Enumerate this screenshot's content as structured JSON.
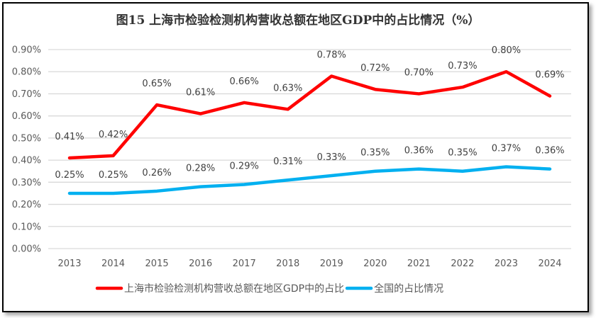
{
  "chart_data": {
    "type": "line",
    "title": "图15 上海市检验检测机构营收总额在地区GDP中的占比情况（%）",
    "xlabel": "",
    "ylabel": "",
    "categories": [
      "2013",
      "2014",
      "2015",
      "2016",
      "2017",
      "2018",
      "2019",
      "2020",
      "2021",
      "2022",
      "2023",
      "2024"
    ],
    "ylim": [
      0,
      0.9
    ],
    "yticks": [
      "0.00%",
      "0.10%",
      "0.20%",
      "0.30%",
      "0.40%",
      "0.50%",
      "0.60%",
      "0.70%",
      "0.80%",
      "0.90%"
    ],
    "grid": true,
    "legend_position": "bottom",
    "series": [
      {
        "name": "上海市检验检测机构营收总额在地区GDP中的占比",
        "color": "#ff0000",
        "values": [
          0.41,
          0.42,
          0.65,
          0.61,
          0.66,
          0.63,
          0.78,
          0.72,
          0.7,
          0.73,
          0.8,
          0.69
        ],
        "labels": [
          "0.41%",
          "0.42%",
          "0.65%",
          "0.61%",
          "0.66%",
          "0.63%",
          "0.78%",
          "0.72%",
          "0.70%",
          "0.73%",
          "0.80%",
          "0.69%"
        ]
      },
      {
        "name": "全国的占比情况",
        "color": "#00b0f0",
        "values": [
          0.25,
          0.25,
          0.26,
          0.28,
          0.29,
          0.31,
          0.33,
          0.35,
          0.36,
          0.35,
          0.37,
          0.36
        ],
        "labels": [
          "0.25%",
          "0.25%",
          "0.26%",
          "0.28%",
          "0.29%",
          "0.31%",
          "0.33%",
          "0.35%",
          "0.36%",
          "0.35%",
          "0.37%",
          "0.36%"
        ]
      }
    ]
  }
}
